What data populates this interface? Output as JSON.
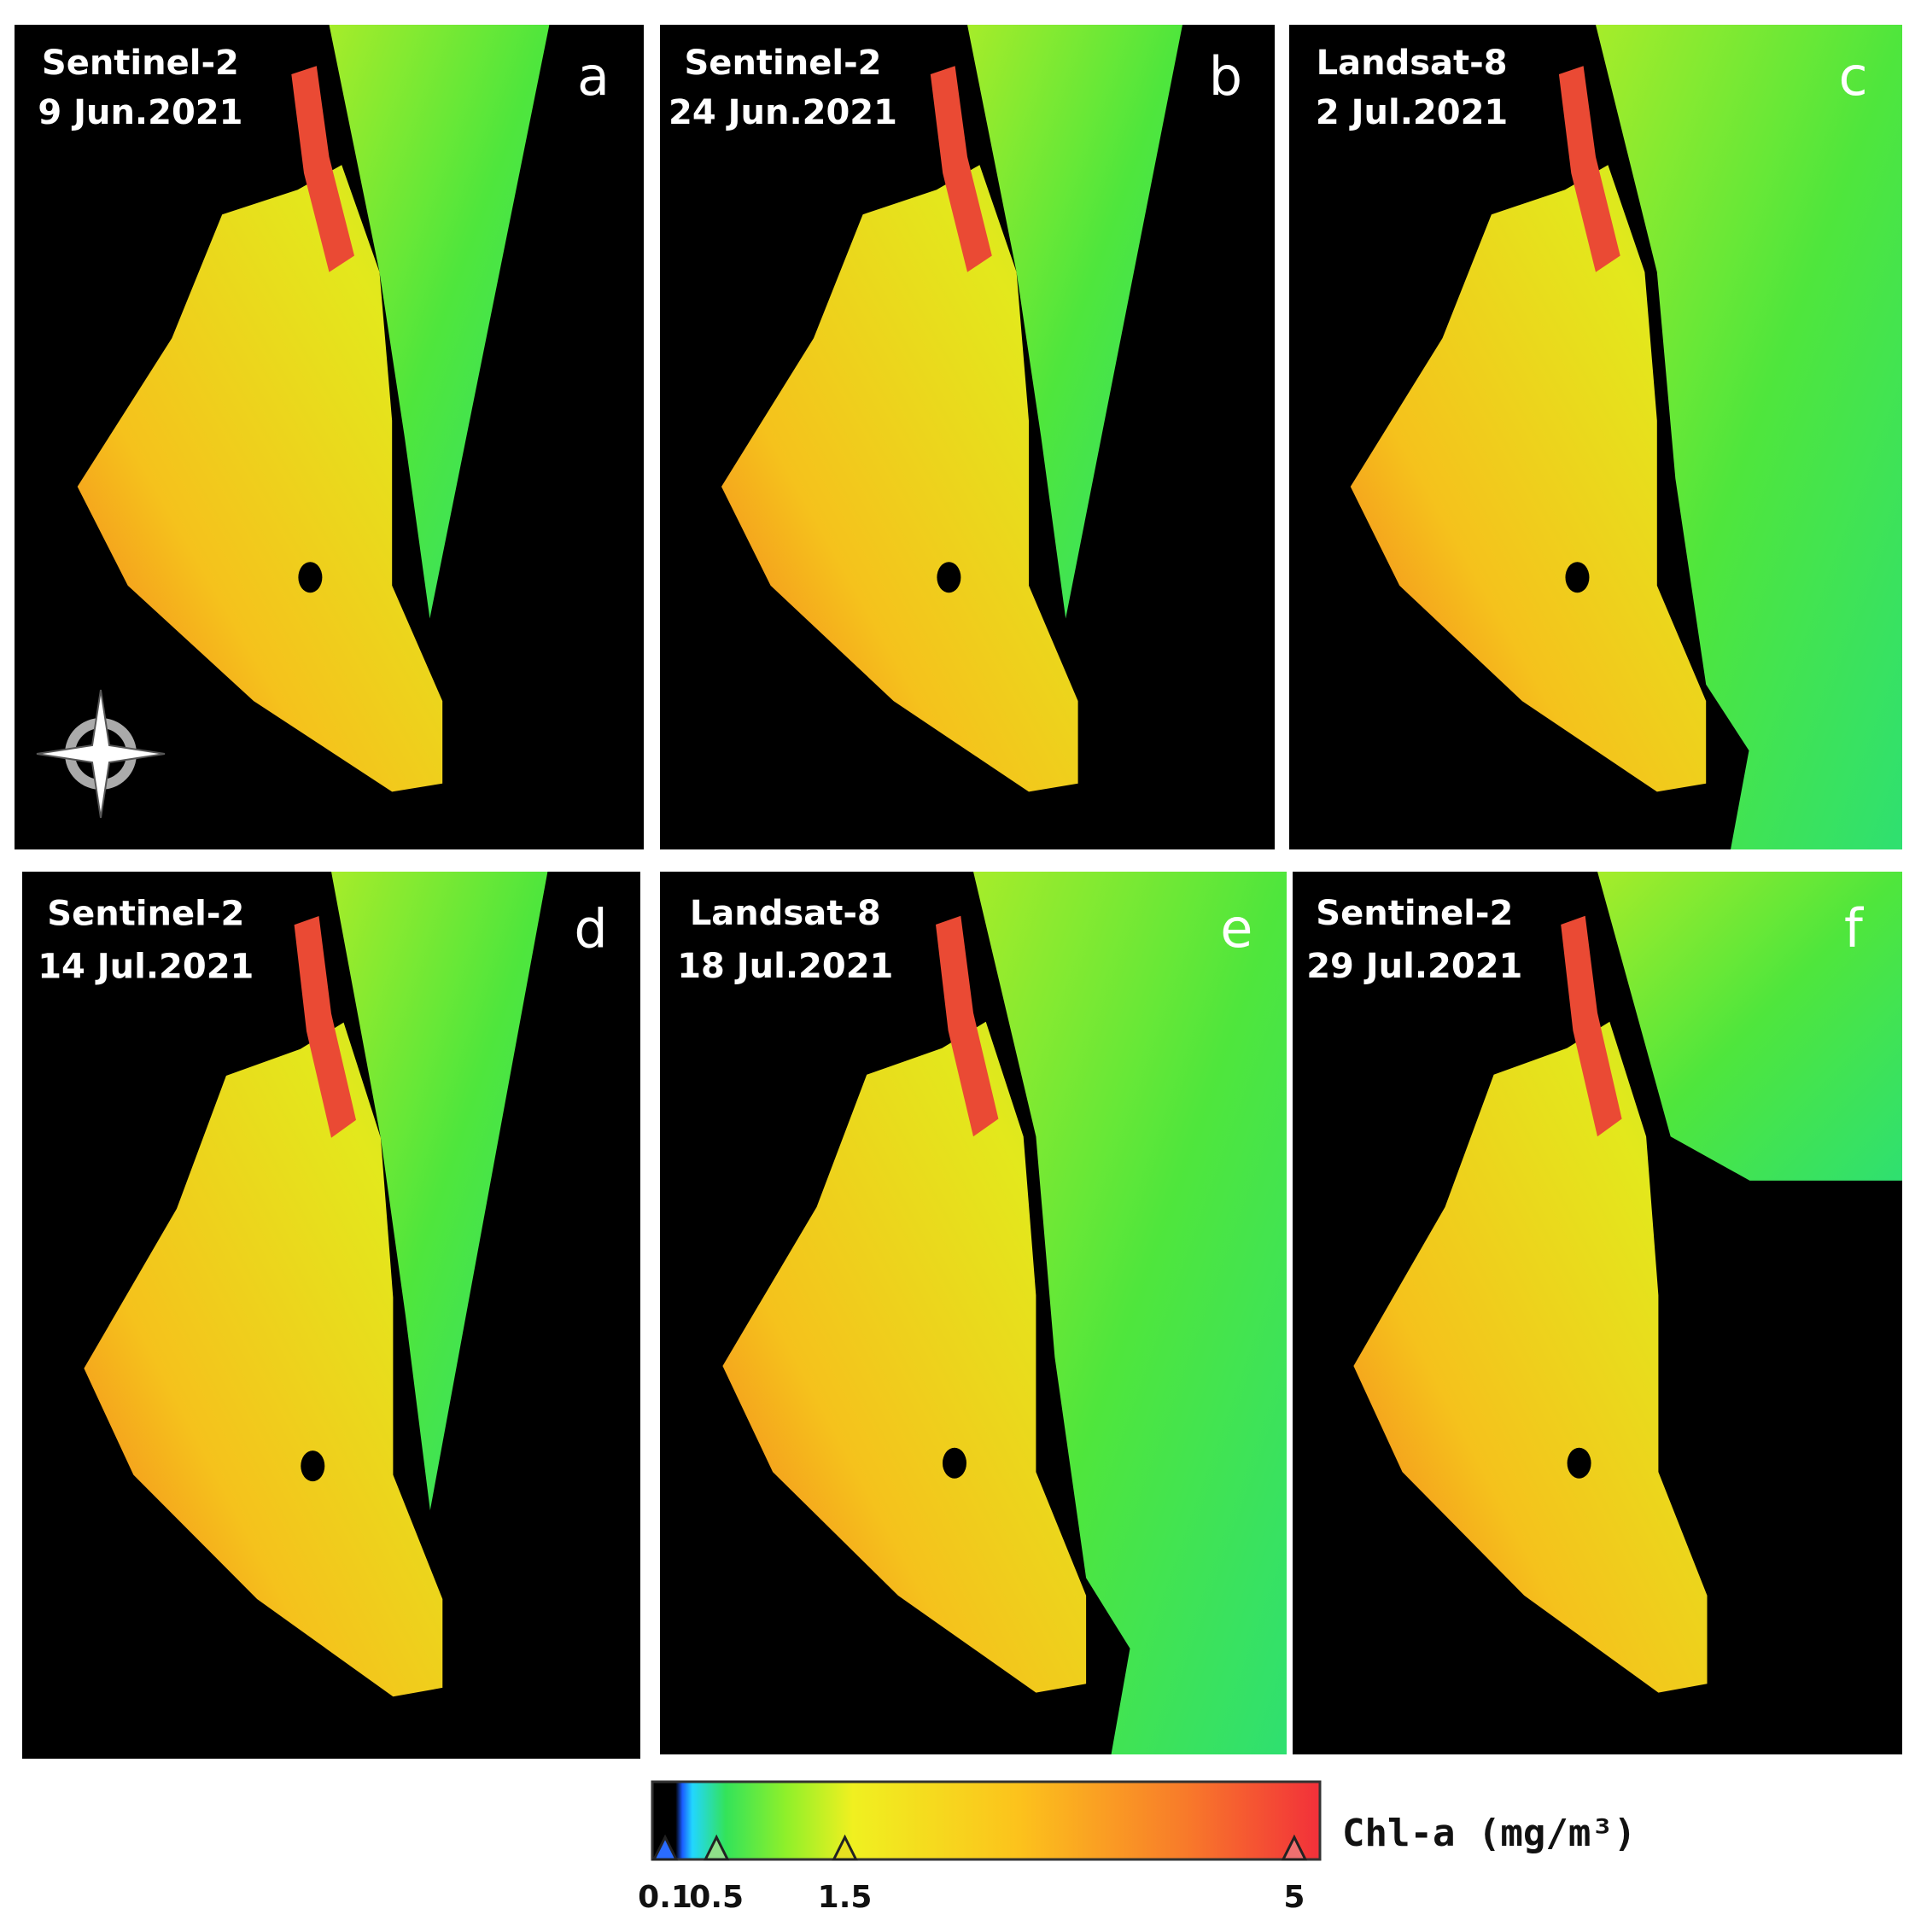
{
  "panels": [
    {
      "sensor": "Sentinel-2",
      "date": "9 Jun.2021",
      "letter": "a"
    },
    {
      "sensor": "Sentinel-2",
      "date": "24 Jun.2021",
      "letter": "b"
    },
    {
      "sensor": "Landsat-8",
      "date": "2 Jul.2021",
      "letter": "c"
    },
    {
      "sensor": "Sentinel-2",
      "date": "14 Jul.2021",
      "letter": "d"
    },
    {
      "sensor": "Landsat-8",
      "date": "18 Jul.2021",
      "letter": "e"
    },
    {
      "sensor": "Sentinel-2",
      "date": "29 Jul.2021",
      "letter": "f"
    }
  ],
  "colorbar": {
    "label": "Chl-a (mg/m³)",
    "xlim": [
      0,
      5.2
    ],
    "xticks": [
      0.1,
      0.5,
      1.5,
      5
    ]
  }
}
